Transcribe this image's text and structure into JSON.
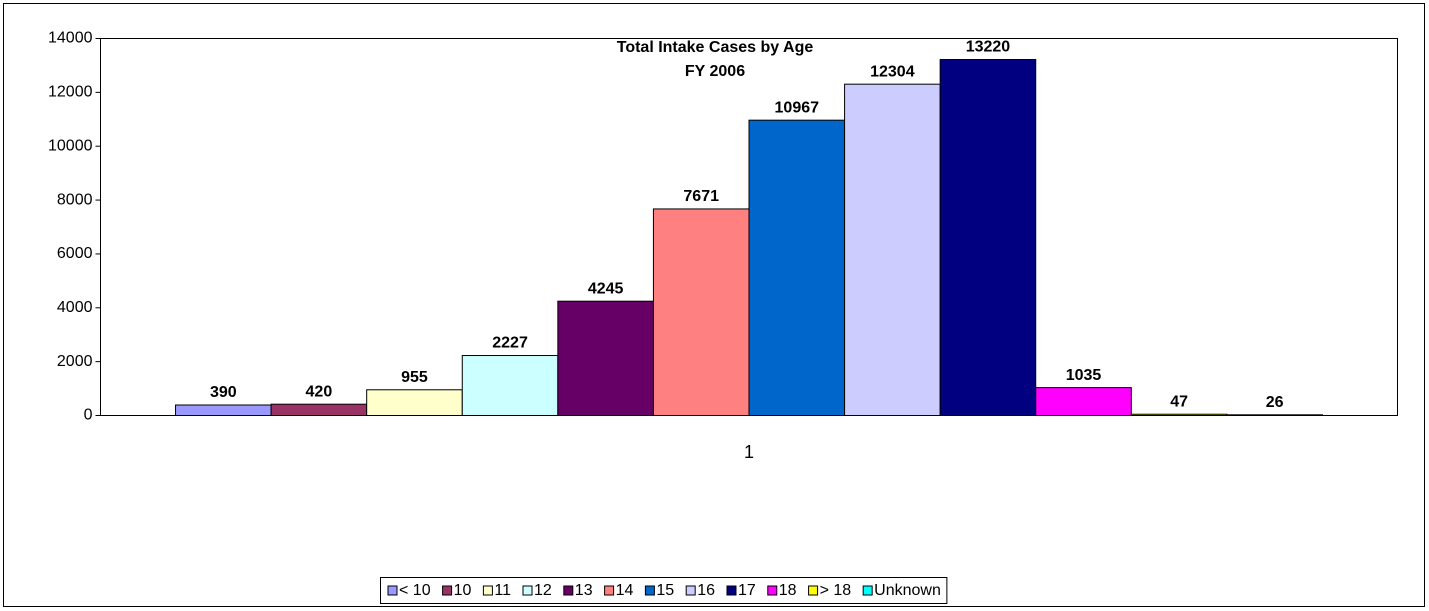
{
  "chart_data": {
    "type": "bar",
    "title": "Total Intake Cases by Age",
    "subtitle": "FY 2006",
    "categories": [
      "1"
    ],
    "series": [
      {
        "name": "< 10",
        "color": "#9999ff",
        "values": [
          390
        ]
      },
      {
        "name": "10",
        "color": "#993366",
        "values": [
          420
        ]
      },
      {
        "name": "11",
        "color": "#ffffcc",
        "values": [
          955
        ]
      },
      {
        "name": "12",
        "color": "#ccffff",
        "values": [
          2227
        ]
      },
      {
        "name": "13",
        "color": "#660066",
        "values": [
          4245
        ]
      },
      {
        "name": "14",
        "color": "#ff8080",
        "values": [
          7671
        ]
      },
      {
        "name": "15",
        "color": "#0066cc",
        "values": [
          10967
        ]
      },
      {
        "name": "16",
        "color": "#ccccff",
        "values": [
          12304
        ]
      },
      {
        "name": "17",
        "color": "#000080",
        "values": [
          13220
        ]
      },
      {
        "name": "18",
        "color": "#ff00ff",
        "values": [
          1035
        ]
      },
      {
        "name": "> 18",
        "color": "#ffff00",
        "values": [
          47
        ]
      },
      {
        "name": "Unknown",
        "color": "#00ffff",
        "values": [
          26
        ]
      }
    ],
    "ylim": [
      0,
      14000
    ],
    "yticks": [
      0,
      2000,
      4000,
      6000,
      8000,
      10000,
      12000,
      14000
    ],
    "grid": false,
    "legend": "bottom"
  }
}
